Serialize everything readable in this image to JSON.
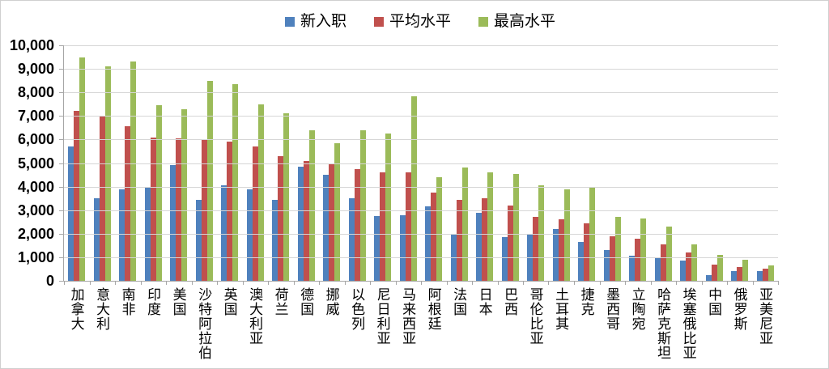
{
  "chart_data": {
    "type": "bar",
    "title": "",
    "xlabel": "",
    "ylabel": "",
    "ylim": [
      0,
      10000
    ],
    "y_tick_step": 1000,
    "y_tick_labels": [
      "10,000",
      "9,000",
      "8,000",
      "7,000",
      "6,000",
      "5,000",
      "4,000",
      "3,000",
      "2,000",
      "1,000",
      "0"
    ],
    "grid": "horizontal",
    "legend_position": "top-center",
    "categories": [
      "加拿大",
      "意大利",
      "南非",
      "印度",
      "美国",
      "沙特阿拉伯",
      "英国",
      "澳大利亚",
      "荷兰",
      "德国",
      "挪威",
      "以色列",
      "尼日利亚",
      "马来西亚",
      "阿根廷",
      "法国",
      "日本",
      "巴西",
      "哥伦比亚",
      "土耳其",
      "捷克",
      "墨西哥",
      "立陶宛",
      "哈萨克斯坦",
      "埃塞俄比亚",
      "中国",
      "俄罗斯",
      "亚美尼亚"
    ],
    "series": [
      {
        "name": "新入职",
        "color": "#4F81BD",
        "values": [
          5700,
          3500,
          3900,
          3950,
          4900,
          3450,
          4050,
          3900,
          3450,
          4850,
          4500,
          3500,
          2750,
          2800,
          3150,
          1950,
          2900,
          1850,
          1950,
          2200,
          1650,
          1300,
          1050,
          1000,
          850,
          250,
          400,
          400
        ]
      },
      {
        "name": "平均水平",
        "color": "#C0504D",
        "values": [
          7200,
          7000,
          6550,
          6100,
          6050,
          6000,
          5900,
          5700,
          5300,
          5100,
          4950,
          4750,
          4600,
          4600,
          3750,
          3450,
          3500,
          3200,
          2700,
          2600,
          2450,
          1900,
          1800,
          1550,
          1200,
          700,
          600,
          500
        ]
      },
      {
        "name": "最高水平",
        "color": "#9BBB59",
        "values": [
          9500,
          9100,
          9300,
          7450,
          7300,
          8500,
          8350,
          7500,
          7100,
          6400,
          5850,
          6400,
          6250,
          7850,
          4400,
          4800,
          4600,
          4550,
          4050,
          3900,
          3950,
          2700,
          2650,
          2300,
          1550,
          1100,
          900,
          650
        ]
      }
    ]
  }
}
